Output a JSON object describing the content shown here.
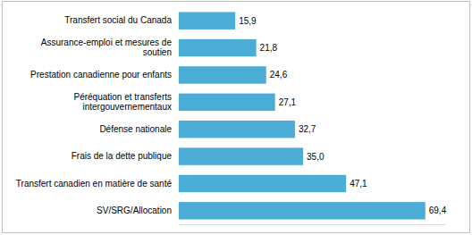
{
  "chart_data": {
    "type": "bar",
    "orientation": "horizontal",
    "categories": [
      "Transfert social du Canada",
      "Assurance-emploi et mesures de soutien",
      "Prestation canadienne pour enfants",
      "Péréquation et transferts intergouvernementaux",
      "Défense nationale",
      "Frais de la dette publique",
      "Transfert canadien en matière de santé",
      "SV/SRG/Allocation"
    ],
    "values": [
      15.9,
      21.8,
      24.6,
      27.1,
      32.7,
      35.0,
      47.1,
      69.4
    ],
    "value_labels": [
      "15,9",
      "21,8",
      "24,6",
      "27,1",
      "32,7",
      "35,0",
      "47,1",
      "69,4"
    ],
    "color": "#4bacd6",
    "xlim": [
      0,
      75
    ],
    "xticks": [],
    "data_labels": true,
    "tick_labels": false,
    "grid": false
  }
}
